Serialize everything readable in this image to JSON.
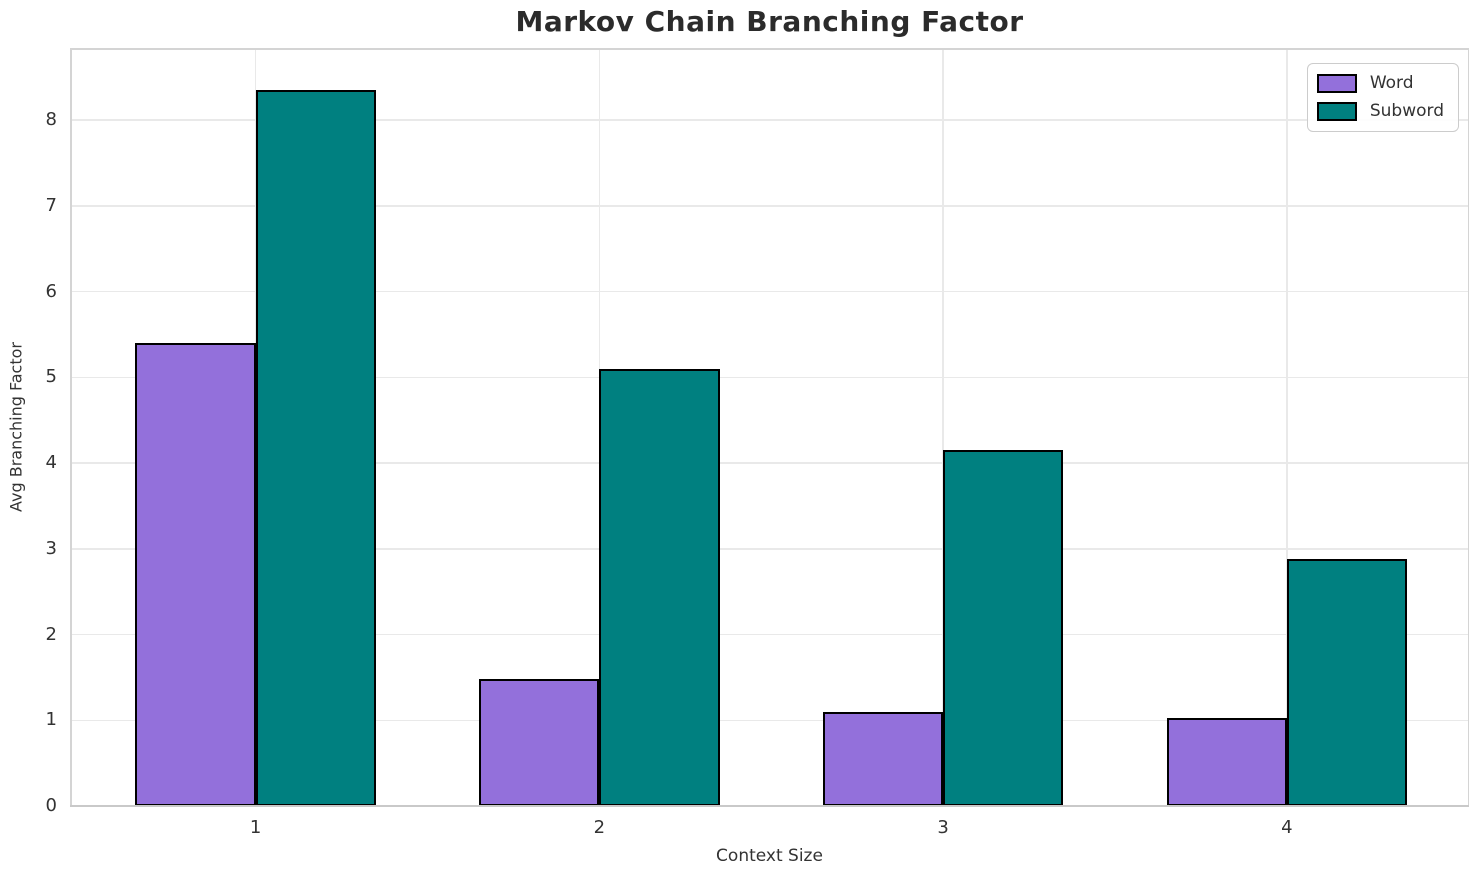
{
  "chart_data": {
    "type": "bar",
    "title": "Markov Chain Branching Factor",
    "xlabel": "Context Size",
    "ylabel": "Avg Branching Factor",
    "categories": [
      "1",
      "2",
      "3",
      "4"
    ],
    "series": [
      {
        "name": "Word",
        "color": "#9370DB",
        "values": [
          5.4,
          1.48,
          1.1,
          1.03
        ]
      },
      {
        "name": "Subword",
        "color": "#008080",
        "values": [
          8.35,
          5.1,
          4.15,
          2.88
        ]
      }
    ],
    "yticks": [
      0,
      1,
      2,
      3,
      4,
      5,
      6,
      7,
      8
    ],
    "ylim": [
      0,
      8.84
    ],
    "xlim": [
      0.46,
      4.53
    ],
    "bar_width": 0.35,
    "bar_edge_color": "#000000",
    "grid": true,
    "legend_position": "upper right",
    "colors": {
      "grid": "#e9e9e9",
      "spine": "#d4d4d4",
      "tick_text": "#333333",
      "title_text": "#2b2b2b"
    }
  }
}
